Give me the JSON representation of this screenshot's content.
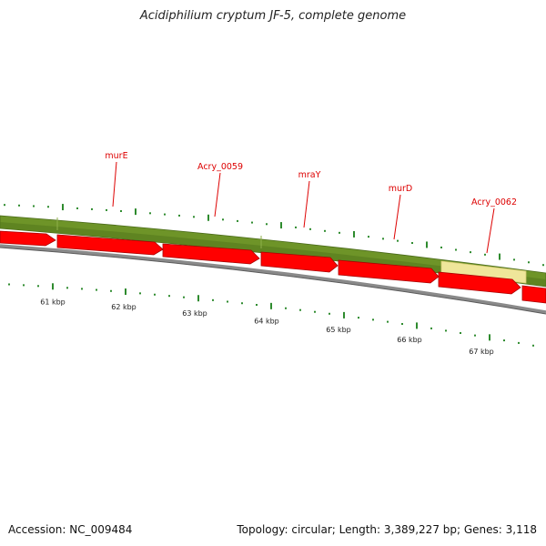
{
  "header": {
    "title": "Acidiphilium cryptum JF-5, complete genome"
  },
  "footer": {
    "accession": "Accession: NC_009484",
    "summary": "Topology: circular; Length: 3,389,227 bp; Genes: 3,118"
  },
  "colors": {
    "gene_track": "#6e9428",
    "gene_track_highlight": "#efe69a",
    "cds_arrow": "#ff0000",
    "backbone": "#888888",
    "tick": "#2e8b2e",
    "gene_label": "#dd0000",
    "scale_label": "#222222"
  },
  "genes": [
    {
      "label": "murE"
    },
    {
      "label": "Acry_0059"
    },
    {
      "label": "mraY"
    },
    {
      "label": "murD"
    },
    {
      "label": "Acry_0062"
    }
  ],
  "scale": {
    "labels": [
      "61 kbp",
      "62 kbp",
      "63 kbp",
      "64 kbp",
      "65 kbp",
      "66 kbp",
      "67 kbp"
    ]
  }
}
